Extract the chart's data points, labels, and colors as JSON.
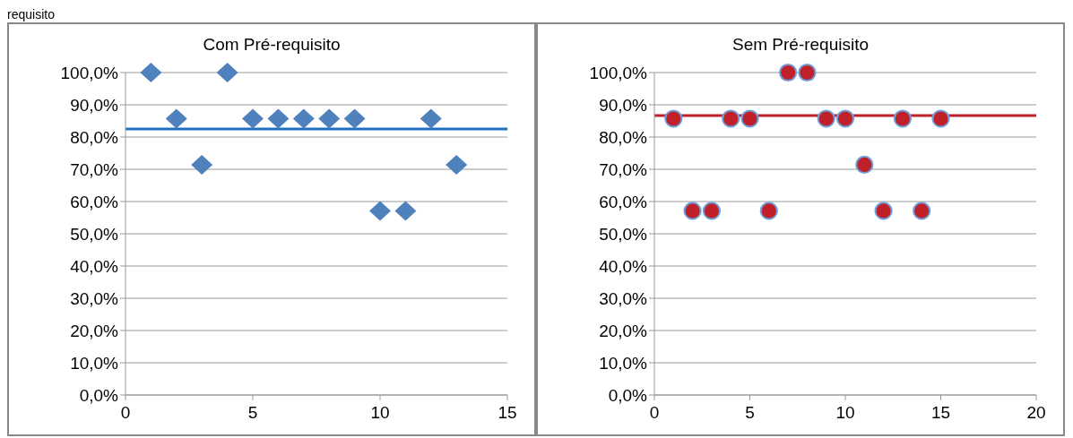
{
  "chart_data": [
    {
      "type": "scatter",
      "title": "Com Pré-requisito",
      "annotations": [
        "requisito"
      ],
      "x": [
        1,
        2,
        3,
        4,
        5,
        6,
        7,
        8,
        9,
        10,
        11,
        12,
        13
      ],
      "series": [
        {
          "color": "#4f81bd",
          "values": [
            100,
            85.7,
            71.4,
            100,
            85.7,
            85.7,
            85.7,
            85.7,
            85.7,
            57.1,
            57.1,
            85.7,
            71.4
          ]
        }
      ],
      "marker": "diamond",
      "xlim": [
        0,
        15
      ],
      "xticks": [
        0,
        5,
        10,
        15
      ],
      "ylim": [
        0,
        100
      ],
      "yticks": [
        {
          "value": 0,
          "label": "0,0%"
        },
        {
          "value": 10,
          "label": "10,0%"
        },
        {
          "value": 20,
          "label": "20,0%"
        },
        {
          "value": 30,
          "label": "30,0%"
        },
        {
          "value": 40,
          "label": "40,0%"
        },
        {
          "value": 50,
          "label": "50,0%"
        },
        {
          "value": 60,
          "label": "60,0%"
        },
        {
          "value": 70,
          "label": "70,0%"
        },
        {
          "value": 80,
          "label": "80,0%"
        },
        {
          "value": 90,
          "label": "90,0%"
        },
        {
          "value": 100,
          "label": "100,0%"
        }
      ],
      "grid": "y",
      "ref_lines": [
        {
          "axis": "y",
          "value": 82.5,
          "color": "#1f6fbf"
        }
      ]
    },
    {
      "type": "scatter",
      "title": "Sem Pré-requisito",
      "x": [
        1,
        2,
        3,
        4,
        5,
        6,
        7,
        8,
        9,
        10,
        11,
        12,
        13,
        14,
        15
      ],
      "series": [
        {
          "color": "#c0202a",
          "values": [
            85.7,
            57.1,
            57.1,
            85.7,
            85.7,
            57.1,
            100,
            100,
            85.7,
            85.7,
            71.4,
            57.1,
            85.7,
            57.1,
            85.7
          ]
        }
      ],
      "marker": "circle",
      "xlim": [
        0,
        20
      ],
      "xticks": [
        0,
        5,
        10,
        15,
        20
      ],
      "ylim": [
        0,
        100
      ],
      "yticks": [
        {
          "value": 0,
          "label": "0,0%"
        },
        {
          "value": 10,
          "label": "10,0%"
        },
        {
          "value": 20,
          "label": "20,0%"
        },
        {
          "value": 30,
          "label": "30,0%"
        },
        {
          "value": 40,
          "label": "40,0%"
        },
        {
          "value": 50,
          "label": "50,0%"
        },
        {
          "value": 60,
          "label": "60,0%"
        },
        {
          "value": 70,
          "label": "70,0%"
        },
        {
          "value": 80,
          "label": "80,0%"
        },
        {
          "value": 90,
          "label": "90,0%"
        },
        {
          "value": 100,
          "label": "100,0%"
        }
      ],
      "grid": "y",
      "ref_lines": [
        {
          "axis": "y",
          "value": 86.7,
          "color": "#c0202a"
        }
      ]
    }
  ]
}
